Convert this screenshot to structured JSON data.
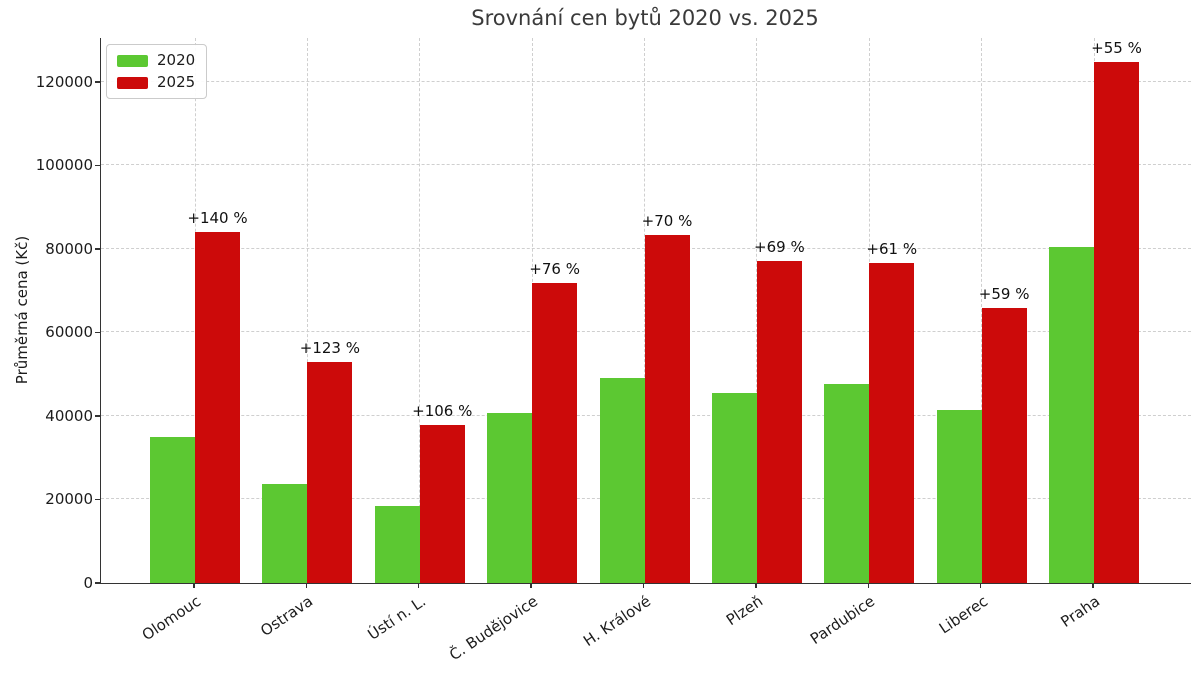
{
  "figure": {
    "title": "Srovnání cen bytů 2020 vs. 2025",
    "ylabel": "Průměrná cena (Kč)"
  },
  "chart_data": {
    "type": "bar",
    "title": "Srovnání cen bytů 2020 vs. 2025",
    "xlabel": "",
    "ylabel": "Průměrná cena (Kč)",
    "categories": [
      "Olomouc",
      "Ostrava",
      "Ústí n. L.",
      "Č. Budějovice",
      "H. Králové",
      "Plzeň",
      "Pardubice",
      "Liberec",
      "Praha"
    ],
    "series": [
      {
        "name": "2020",
        "color": "#5cc832",
        "values": [
          35000,
          23700,
          18400,
          40800,
          49000,
          45600,
          47600,
          41400,
          80500
        ]
      },
      {
        "name": "2025",
        "color": "#cc0a0a",
        "values": [
          84000,
          52900,
          37900,
          71800,
          83300,
          77100,
          76700,
          65800,
          124800
        ]
      }
    ],
    "bar_annotations": [
      "+140 %",
      "+123 %",
      "+106 %",
      "+76 %",
      "+70 %",
      "+69 %",
      "+61 %",
      "+59 %",
      "+55 %"
    ],
    "yticks": [
      0,
      20000,
      40000,
      60000,
      80000,
      100000,
      120000
    ],
    "ylim": [
      0,
      130500
    ],
    "grid": "both, dashed, below bars",
    "legend_position": "upper-left",
    "colors": {
      "grid": "#cfcfcf",
      "axis": "#333333",
      "tick_text": "#1c1c1c",
      "title_text": "#3a3a3a",
      "annotation_text": "#111111"
    }
  }
}
